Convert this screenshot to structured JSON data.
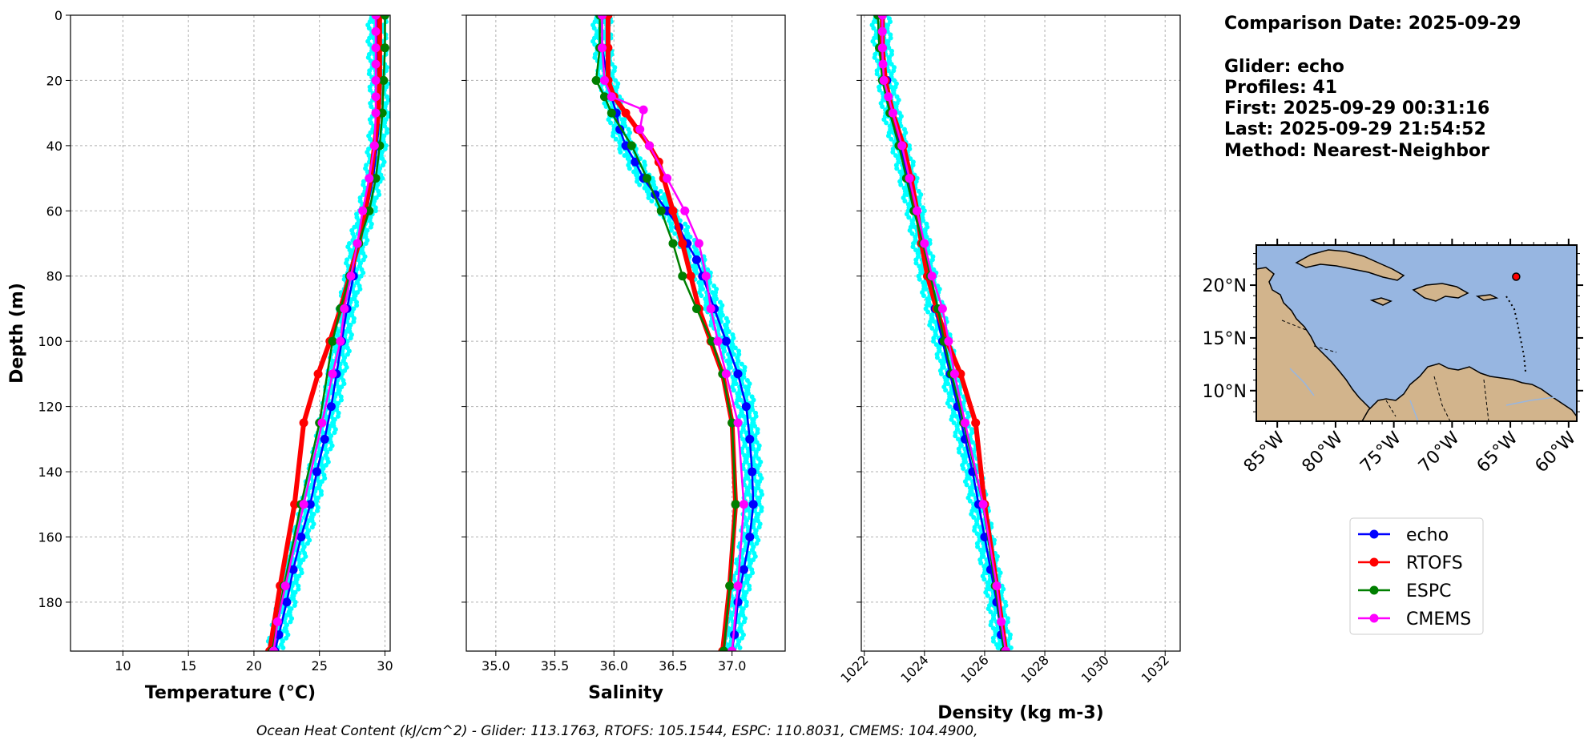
{
  "info": {
    "comparison_date": "Comparison Date: 2025-09-29",
    "glider": "Glider: echo",
    "profiles": "Profiles: 41",
    "first": "First: 2025-09-29 00:31:16",
    "last": "Last: 2025-09-29 21:54:52",
    "method": "Method: Nearest-Neighbor"
  },
  "footer": "Ocean Heat Content (kJ/cm^2) - Glider: 113.1763,  RTOFS: 105.1544,  ESPC: 110.8031,  CMEMS: 104.4900,",
  "colors": {
    "echo": "#0000ff",
    "RTOFS": "#ff0000",
    "ESPC": "#007f00",
    "CMEMS": "#ff00ff",
    "glider_raw": "#00ffff",
    "ocean": "#97b6e1",
    "land": "#d2b48c"
  },
  "legend": [
    {
      "name": "echo",
      "color": "#0000ff"
    },
    {
      "name": "RTOFS",
      "color": "#ff0000"
    },
    {
      "name": "ESPC",
      "color": "#007f00"
    },
    {
      "name": "CMEMS",
      "color": "#ff00ff"
    }
  ],
  "map": {
    "lat_labels": [
      "20°N",
      "15°N",
      "10°N"
    ],
    "lon_labels": [
      "85°W",
      "80°W",
      "75°W",
      "70°W",
      "65°W",
      "60°W"
    ],
    "lat_values": [
      20,
      15,
      10
    ],
    "lon_values": [
      -85,
      -80,
      -75,
      -70,
      -65,
      -60
    ],
    "extent": {
      "lon": [
        -86.8,
        -59.3
      ],
      "lat": [
        7.1,
        23.8
      ]
    },
    "glider_position": {
      "lon": -64.5,
      "lat": 20.8
    }
  },
  "chart_data": [
    {
      "type": "line",
      "xlabel": "Temperature (°C)",
      "ylabel": "Depth (m)",
      "xlim": [
        6,
        30.4
      ],
      "ylim": [
        195,
        0
      ],
      "xticks": [
        10,
        15,
        20,
        25,
        30
      ],
      "yticks": [
        0,
        20,
        40,
        60,
        80,
        100,
        120,
        140,
        160,
        180
      ],
      "grid": true,
      "series": [
        {
          "name": "echo",
          "depth": [
            0,
            10,
            20,
            30,
            40,
            50,
            60,
            70,
            80,
            90,
            100,
            110,
            120,
            130,
            140,
            150,
            160,
            170,
            180,
            190,
            195
          ],
          "values": [
            29.4,
            29.4,
            29.5,
            29.6,
            29.4,
            29.1,
            28.6,
            27.9,
            27.6,
            27.1,
            26.7,
            26.3,
            25.9,
            25.4,
            24.8,
            24.3,
            23.6,
            23.0,
            22.5,
            21.9,
            21.6
          ]
        },
        {
          "name": "RTOFS",
          "depth": [
            0,
            10,
            20,
            30,
            40,
            50,
            60,
            70,
            80,
            90,
            100,
            110,
            125,
            150,
            175,
            195
          ],
          "values": [
            29.6,
            29.6,
            29.6,
            29.5,
            29.2,
            28.9,
            28.5,
            28.0,
            27.3,
            26.6,
            25.8,
            24.9,
            23.8,
            23.1,
            22.0,
            21.2
          ]
        },
        {
          "name": "ESPC",
          "depth": [
            0,
            10,
            20,
            30,
            40,
            50,
            60,
            70,
            80,
            90,
            100,
            125,
            150,
            175,
            195
          ],
          "values": [
            30.0,
            30.0,
            29.9,
            29.8,
            29.6,
            29.3,
            28.8,
            28.0,
            27.3,
            26.6,
            26.0,
            25.0,
            23.6,
            22.3,
            21.4
          ]
        },
        {
          "name": "CMEMS",
          "depth": [
            0,
            5,
            10,
            15,
            20,
            25,
            30,
            40,
            50,
            60,
            70,
            80,
            90,
            100,
            110,
            125,
            150,
            175,
            186,
            195
          ],
          "values": [
            29.3,
            29.3,
            29.3,
            29.3,
            29.3,
            29.3,
            29.3,
            29.2,
            28.8,
            28.3,
            27.9,
            27.4,
            26.9,
            26.6,
            26.0,
            25.2,
            23.8,
            22.4,
            21.8,
            21.5
          ]
        }
      ]
    },
    {
      "type": "line",
      "xlabel": "Salinity",
      "xlim": [
        34.75,
        37.45
      ],
      "ylim": [
        195,
        0
      ],
      "xticks": [
        35.0,
        35.5,
        36.0,
        36.5,
        37.0
      ],
      "grid": true,
      "series": [
        {
          "name": "echo",
          "depth": [
            0,
            10,
            20,
            25,
            30,
            35,
            40,
            45,
            50,
            55,
            60,
            65,
            70,
            75,
            80,
            90,
            100,
            110,
            120,
            130,
            140,
            150,
            160,
            170,
            180,
            190,
            195
          ],
          "values": [
            35.9,
            35.9,
            35.95,
            35.98,
            36.02,
            36.05,
            36.1,
            36.18,
            36.25,
            36.35,
            36.45,
            36.55,
            36.62,
            36.7,
            36.75,
            36.85,
            36.95,
            37.05,
            37.12,
            37.15,
            37.17,
            37.18,
            37.15,
            37.1,
            37.05,
            37.02,
            37.0
          ]
        },
        {
          "name": "RTOFS",
          "depth": [
            0,
            10,
            20,
            25,
            30,
            35,
            40,
            45,
            50,
            60,
            70,
            80,
            90,
            100,
            110,
            125,
            150,
            175,
            195
          ],
          "values": [
            35.95,
            35.95,
            35.95,
            36.0,
            36.1,
            36.2,
            36.3,
            36.38,
            36.42,
            36.5,
            36.58,
            36.65,
            36.72,
            36.82,
            36.92,
            37.0,
            37.03,
            36.98,
            36.92
          ]
        },
        {
          "name": "ESPC",
          "depth": [
            0,
            10,
            20,
            25,
            30,
            40,
            50,
            60,
            70,
            80,
            90,
            100,
            110,
            125,
            150,
            175,
            195
          ],
          "values": [
            35.88,
            35.88,
            35.85,
            35.92,
            35.98,
            36.15,
            36.28,
            36.4,
            36.5,
            36.58,
            36.7,
            36.83,
            36.92,
            37.0,
            37.03,
            36.98,
            36.93
          ]
        },
        {
          "name": "CMEMS",
          "depth": [
            0,
            10,
            20,
            25,
            29,
            35,
            40,
            50,
            60,
            70,
            80,
            90,
            100,
            110,
            125,
            150,
            175,
            195
          ],
          "values": [
            35.9,
            35.9,
            35.92,
            35.98,
            36.25,
            36.22,
            36.3,
            36.45,
            36.6,
            36.72,
            36.78,
            36.82,
            36.88,
            36.95,
            37.05,
            37.1,
            37.05,
            37.0
          ]
        }
      ]
    },
    {
      "type": "line",
      "xlabel": "Density (kg m-3)",
      "xlim": [
        1021.9,
        1032.5
      ],
      "ylim": [
        195,
        0
      ],
      "xticks": [
        1022,
        1024,
        1026,
        1028,
        1030,
        1032
      ],
      "grid": true,
      "series": [
        {
          "name": "echo",
          "depth": [
            0,
            10,
            20,
            30,
            40,
            50,
            60,
            70,
            80,
            90,
            100,
            110,
            120,
            130,
            140,
            150,
            160,
            170,
            180,
            190,
            195
          ],
          "values": [
            1022.55,
            1022.6,
            1022.75,
            1022.9,
            1023.2,
            1023.45,
            1023.7,
            1023.9,
            1024.1,
            1024.35,
            1024.6,
            1024.85,
            1025.1,
            1025.35,
            1025.6,
            1025.8,
            1026.0,
            1026.2,
            1026.4,
            1026.55,
            1026.65
          ]
        },
        {
          "name": "RTOFS",
          "depth": [
            0,
            10,
            20,
            30,
            40,
            50,
            60,
            70,
            80,
            90,
            100,
            110,
            125,
            150,
            175,
            195
          ],
          "values": [
            1022.6,
            1022.6,
            1022.7,
            1022.95,
            1023.3,
            1023.55,
            1023.75,
            1023.9,
            1024.1,
            1024.4,
            1024.75,
            1025.2,
            1025.7,
            1026.0,
            1026.4,
            1026.7
          ]
        },
        {
          "name": "ESPC",
          "depth": [
            0,
            10,
            20,
            30,
            40,
            50,
            60,
            70,
            80,
            90,
            100,
            110,
            125,
            150,
            175,
            195
          ],
          "values": [
            1022.45,
            1022.5,
            1022.6,
            1022.85,
            1023.15,
            1023.4,
            1023.65,
            1023.95,
            1024.2,
            1024.45,
            1024.65,
            1024.9,
            1025.3,
            1025.95,
            1026.35,
            1026.65
          ]
        },
        {
          "name": "CMEMS",
          "depth": [
            0,
            5,
            10,
            15,
            20,
            25,
            30,
            40,
            50,
            60,
            70,
            80,
            90,
            100,
            110,
            125,
            150,
            175,
            186,
            195
          ],
          "values": [
            1022.6,
            1022.6,
            1022.6,
            1022.62,
            1022.65,
            1022.8,
            1022.95,
            1023.25,
            1023.5,
            1023.75,
            1024.0,
            1024.25,
            1024.6,
            1024.8,
            1025.0,
            1025.35,
            1025.95,
            1026.4,
            1026.55,
            1026.7
          ]
        }
      ]
    }
  ]
}
